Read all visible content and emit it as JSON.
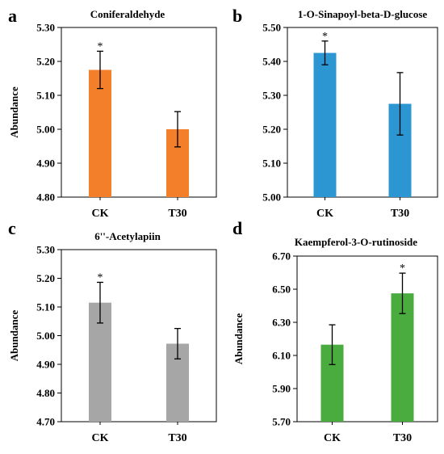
{
  "chart_data": [
    {
      "type": "bar",
      "panel": "a",
      "title": "Coniferaldehyde",
      "ylabel": "Abundance",
      "xlabel": "",
      "categories": [
        "CK",
        "T30"
      ],
      "values": [
        5.175,
        5.0
      ],
      "errors": [
        0.055,
        0.052
      ],
      "significance": [
        "*",
        ""
      ],
      "ylim": [
        4.8,
        5.3
      ],
      "yticks": [
        "4.80",
        "4.90",
        "5.00",
        "5.10",
        "5.20",
        "5.30"
      ],
      "color": "#f47f2a",
      "grid": false
    },
    {
      "type": "bar",
      "panel": "b",
      "title": "1-O-Sinapoyl-beta-D-glucose",
      "ylabel": "",
      "xlabel": "",
      "categories": [
        "CK",
        "T30"
      ],
      "values": [
        5.425,
        5.275
      ],
      "errors": [
        0.035,
        0.092
      ],
      "significance": [
        "*",
        ""
      ],
      "ylim": [
        5.0,
        5.5
      ],
      "yticks": [
        "5.00",
        "5.10",
        "5.20",
        "5.30",
        "5.40",
        "5.50"
      ],
      "color": "#2b96d2",
      "grid": false
    },
    {
      "type": "bar",
      "panel": "c",
      "title": "6''-Acetylapiin",
      "ylabel": "Abundance",
      "xlabel": "",
      "categories": [
        "CK",
        "T30"
      ],
      "values": [
        5.115,
        4.972
      ],
      "errors": [
        0.071,
        0.053
      ],
      "significance": [
        "*",
        ""
      ],
      "ylim": [
        4.7,
        5.3
      ],
      "yticks": [
        "4.70",
        "4.80",
        "4.90",
        "5.00",
        "5.10",
        "5.20",
        "5.30"
      ],
      "color": "#a6a6a6",
      "grid": false
    },
    {
      "type": "bar",
      "panel": "d",
      "title": "Kaempferol-3-O-rutinoside",
      "ylabel": "Abundance",
      "xlabel": "",
      "categories": [
        "CK",
        "T30"
      ],
      "values": [
        6.165,
        6.475
      ],
      "errors": [
        0.12,
        0.122
      ],
      "significance": [
        "",
        "*"
      ],
      "ylim": [
        5.7,
        6.7
      ],
      "yticks": [
        "5.70",
        "5.90",
        "6.10",
        "6.30",
        "6.50",
        "6.70"
      ],
      "color": "#4aab3f",
      "grid": false
    }
  ]
}
